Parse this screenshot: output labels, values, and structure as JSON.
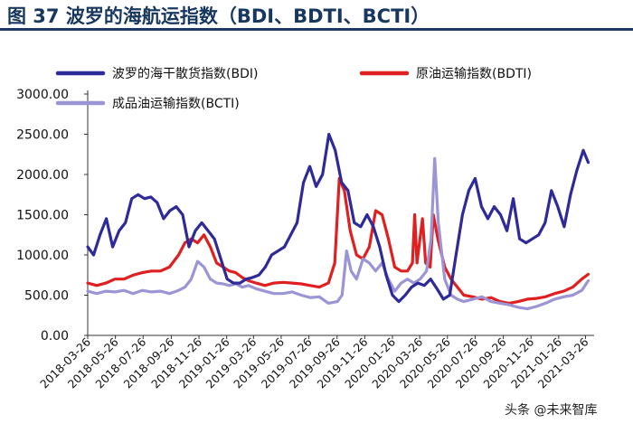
{
  "figure": {
    "title": "图 37 波罗的海航运指数（BDI、BDTI、BCTI）",
    "watermark": "头条 @未来智库"
  },
  "chart_data": {
    "type": "line",
    "title": "",
    "xlabel": "",
    "ylabel": "",
    "ylim": [
      0,
      3000
    ],
    "yticks": [
      "3000.00",
      "2500.00",
      "2000.00",
      "1500.00",
      "1000.00",
      "500.00",
      "0.00"
    ],
    "ytick_values": [
      3000,
      2500,
      2000,
      1500,
      1000,
      500,
      0
    ],
    "xticks": [
      "2018-03-26",
      "2018-05-26",
      "2018-07-26",
      "2018-09-26",
      "2018-11-26",
      "2019-01-26",
      "2019-03-26",
      "2019-05-26",
      "2019-07-26",
      "2019-09-26",
      "2019-11-26",
      "2020-01-26",
      "2020-03-26",
      "2020-05-26",
      "2020-07-26",
      "2020-09-26",
      "2020-11-26",
      "2021-01-26",
      "2021-03-26"
    ],
    "x_start": "2018-03-26",
    "x_end": "2021-04-10",
    "grid": false,
    "legend_position": "top",
    "series": [
      {
        "name": "波罗的海干散货指数(BDI)",
        "color": "#2e2a9a",
        "points": [
          [
            "2018-03-26",
            1100
          ],
          [
            "2018-04-08",
            1000
          ],
          [
            "2018-04-22",
            1250
          ],
          [
            "2018-05-06",
            1450
          ],
          [
            "2018-05-20",
            1100
          ],
          [
            "2018-06-03",
            1300
          ],
          [
            "2018-06-17",
            1400
          ],
          [
            "2018-07-01",
            1700
          ],
          [
            "2018-07-15",
            1750
          ],
          [
            "2018-07-29",
            1700
          ],
          [
            "2018-08-12",
            1720
          ],
          [
            "2018-08-26",
            1650
          ],
          [
            "2018-09-09",
            1450
          ],
          [
            "2018-09-23",
            1550
          ],
          [
            "2018-10-07",
            1600
          ],
          [
            "2018-10-21",
            1500
          ],
          [
            "2018-11-04",
            1100
          ],
          [
            "2018-11-18",
            1300
          ],
          [
            "2018-12-02",
            1400
          ],
          [
            "2018-12-16",
            1300
          ],
          [
            "2018-12-30",
            1200
          ],
          [
            "2019-01-13",
            950
          ],
          [
            "2019-01-27",
            700
          ],
          [
            "2019-02-10",
            650
          ],
          [
            "2019-02-24",
            650
          ],
          [
            "2019-03-10",
            700
          ],
          [
            "2019-03-24",
            720
          ],
          [
            "2019-04-07",
            750
          ],
          [
            "2019-04-21",
            850
          ],
          [
            "2019-05-05",
            1000
          ],
          [
            "2019-05-19",
            1050
          ],
          [
            "2019-06-02",
            1100
          ],
          [
            "2019-06-16",
            1250
          ],
          [
            "2019-06-30",
            1400
          ],
          [
            "2019-07-14",
            1900
          ],
          [
            "2019-07-28",
            2100
          ],
          [
            "2019-08-11",
            1850
          ],
          [
            "2019-08-25",
            2000
          ],
          [
            "2019-09-08",
            2500
          ],
          [
            "2019-09-22",
            2300
          ],
          [
            "2019-10-06",
            1900
          ],
          [
            "2019-10-20",
            1800
          ],
          [
            "2019-11-03",
            1400
          ],
          [
            "2019-11-17",
            1350
          ],
          [
            "2019-12-01",
            1500
          ],
          [
            "2019-12-15",
            1350
          ],
          [
            "2019-12-29",
            1100
          ],
          [
            "2020-01-12",
            750
          ],
          [
            "2020-01-26",
            500
          ],
          [
            "2020-02-09",
            420
          ],
          [
            "2020-02-23",
            500
          ],
          [
            "2020-03-08",
            600
          ],
          [
            "2020-03-22",
            650
          ],
          [
            "2020-04-05",
            620
          ],
          [
            "2020-04-19",
            700
          ],
          [
            "2020-05-03",
            580
          ],
          [
            "2020-05-17",
            450
          ],
          [
            "2020-05-31",
            500
          ],
          [
            "2020-06-14",
            1000
          ],
          [
            "2020-06-28",
            1500
          ],
          [
            "2020-07-12",
            1800
          ],
          [
            "2020-07-26",
            1950
          ],
          [
            "2020-08-09",
            1600
          ],
          [
            "2020-08-23",
            1450
          ],
          [
            "2020-09-06",
            1600
          ],
          [
            "2020-09-20",
            1500
          ],
          [
            "2020-10-04",
            1300
          ],
          [
            "2020-10-18",
            1700
          ],
          [
            "2020-11-01",
            1200
          ],
          [
            "2020-11-15",
            1150
          ],
          [
            "2020-11-29",
            1200
          ],
          [
            "2020-12-13",
            1250
          ],
          [
            "2020-12-27",
            1400
          ],
          [
            "2021-01-10",
            1800
          ],
          [
            "2021-01-24",
            1600
          ],
          [
            "2021-02-07",
            1350
          ],
          [
            "2021-02-21",
            1750
          ],
          [
            "2021-03-07",
            2050
          ],
          [
            "2021-03-21",
            2300
          ],
          [
            "2021-04-01",
            2150
          ]
        ]
      },
      {
        "name": "原油运输指数(BDTI)",
        "color": "#e02020",
        "points": [
          [
            "2018-03-26",
            650
          ],
          [
            "2018-04-15",
            620
          ],
          [
            "2018-05-05",
            650
          ],
          [
            "2018-05-25",
            700
          ],
          [
            "2018-06-14",
            700
          ],
          [
            "2018-07-04",
            750
          ],
          [
            "2018-07-24",
            780
          ],
          [
            "2018-08-13",
            800
          ],
          [
            "2018-09-02",
            800
          ],
          [
            "2018-09-22",
            850
          ],
          [
            "2018-10-12",
            1000
          ],
          [
            "2018-10-26",
            1150
          ],
          [
            "2018-11-09",
            1200
          ],
          [
            "2018-11-23",
            1150
          ],
          [
            "2018-12-07",
            1250
          ],
          [
            "2018-12-21",
            1100
          ],
          [
            "2019-01-04",
            900
          ],
          [
            "2019-01-18",
            850
          ],
          [
            "2019-02-01",
            800
          ],
          [
            "2019-02-15",
            780
          ],
          [
            "2019-03-01",
            720
          ],
          [
            "2019-03-15",
            680
          ],
          [
            "2019-04-01",
            650
          ],
          [
            "2019-04-20",
            620
          ],
          [
            "2019-05-10",
            650
          ],
          [
            "2019-05-30",
            660
          ],
          [
            "2019-06-19",
            650
          ],
          [
            "2019-07-09",
            640
          ],
          [
            "2019-07-29",
            620
          ],
          [
            "2019-08-18",
            600
          ],
          [
            "2019-09-07",
            650
          ],
          [
            "2019-09-21",
            900
          ],
          [
            "2019-10-01",
            1950
          ],
          [
            "2019-10-12",
            1800
          ],
          [
            "2019-10-25",
            1300
          ],
          [
            "2019-11-08",
            1000
          ],
          [
            "2019-11-22",
            950
          ],
          [
            "2019-12-06",
            1100
          ],
          [
            "2019-12-20",
            1550
          ],
          [
            "2020-01-03",
            1500
          ],
          [
            "2020-01-17",
            1200
          ],
          [
            "2020-01-31",
            850
          ],
          [
            "2020-02-14",
            800
          ],
          [
            "2020-02-28",
            800
          ],
          [
            "2020-03-10",
            900
          ],
          [
            "2020-03-15",
            1500
          ],
          [
            "2020-03-20",
            900
          ],
          [
            "2020-04-01",
            1450
          ],
          [
            "2020-04-08",
            900
          ],
          [
            "2020-04-18",
            850
          ],
          [
            "2020-04-25",
            1500
          ],
          [
            "2020-05-05",
            1200
          ],
          [
            "2020-05-20",
            850
          ],
          [
            "2020-06-03",
            700
          ],
          [
            "2020-06-17",
            600
          ],
          [
            "2020-07-01",
            500
          ],
          [
            "2020-07-21",
            480
          ],
          [
            "2020-08-10",
            450
          ],
          [
            "2020-08-30",
            470
          ],
          [
            "2020-09-19",
            420
          ],
          [
            "2020-10-09",
            400
          ],
          [
            "2020-10-29",
            420
          ],
          [
            "2020-11-18",
            450
          ],
          [
            "2020-12-08",
            460
          ],
          [
            "2020-12-28",
            480
          ],
          [
            "2021-01-17",
            520
          ],
          [
            "2021-02-06",
            550
          ],
          [
            "2021-02-26",
            600
          ],
          [
            "2021-03-18",
            700
          ],
          [
            "2021-04-01",
            760
          ]
        ]
      },
      {
        "name": "成品油运输指数(BCTI)",
        "color": "#9b95d6",
        "points": [
          [
            "2018-03-26",
            550
          ],
          [
            "2018-04-15",
            520
          ],
          [
            "2018-05-05",
            550
          ],
          [
            "2018-05-25",
            540
          ],
          [
            "2018-06-14",
            560
          ],
          [
            "2018-07-04",
            520
          ],
          [
            "2018-07-24",
            560
          ],
          [
            "2018-08-13",
            540
          ],
          [
            "2018-09-02",
            550
          ],
          [
            "2018-09-22",
            520
          ],
          [
            "2018-10-12",
            560
          ],
          [
            "2018-10-26",
            600
          ],
          [
            "2018-11-09",
            700
          ],
          [
            "2018-11-23",
            920
          ],
          [
            "2018-12-07",
            850
          ],
          [
            "2018-12-21",
            700
          ],
          [
            "2019-01-04",
            650
          ],
          [
            "2019-01-18",
            640
          ],
          [
            "2019-02-01",
            620
          ],
          [
            "2019-02-15",
            640
          ],
          [
            "2019-03-01",
            600
          ],
          [
            "2019-03-15",
            620
          ],
          [
            "2019-04-01",
            580
          ],
          [
            "2019-04-20",
            550
          ],
          [
            "2019-05-10",
            520
          ],
          [
            "2019-05-30",
            520
          ],
          [
            "2019-06-19",
            540
          ],
          [
            "2019-07-09",
            500
          ],
          [
            "2019-07-29",
            470
          ],
          [
            "2019-08-18",
            480
          ],
          [
            "2019-09-07",
            400
          ],
          [
            "2019-09-27",
            420
          ],
          [
            "2019-10-07",
            500
          ],
          [
            "2019-10-17",
            1050
          ],
          [
            "2019-10-27",
            800
          ],
          [
            "2019-11-08",
            700
          ],
          [
            "2019-11-22",
            950
          ],
          [
            "2019-12-06",
            900
          ],
          [
            "2019-12-20",
            800
          ],
          [
            "2020-01-03",
            900
          ],
          [
            "2020-01-17",
            700
          ],
          [
            "2020-01-31",
            550
          ],
          [
            "2020-02-14",
            650
          ],
          [
            "2020-02-28",
            700
          ],
          [
            "2020-03-13",
            650
          ],
          [
            "2020-03-27",
            700
          ],
          [
            "2020-04-10",
            800
          ],
          [
            "2020-04-20",
            1200
          ],
          [
            "2020-04-28",
            2200
          ],
          [
            "2020-05-06",
            1400
          ],
          [
            "2020-05-20",
            700
          ],
          [
            "2020-06-03",
            500
          ],
          [
            "2020-06-17",
            450
          ],
          [
            "2020-07-01",
            420
          ],
          [
            "2020-07-21",
            450
          ],
          [
            "2020-08-10",
            480
          ],
          [
            "2020-08-30",
            420
          ],
          [
            "2020-09-19",
            400
          ],
          [
            "2020-10-09",
            380
          ],
          [
            "2020-10-29",
            350
          ],
          [
            "2020-11-18",
            330
          ],
          [
            "2020-12-08",
            360
          ],
          [
            "2020-12-28",
            400
          ],
          [
            "2021-01-17",
            450
          ],
          [
            "2021-02-06",
            480
          ],
          [
            "2021-02-26",
            500
          ],
          [
            "2021-03-18",
            560
          ],
          [
            "2021-04-01",
            680
          ]
        ]
      }
    ]
  }
}
